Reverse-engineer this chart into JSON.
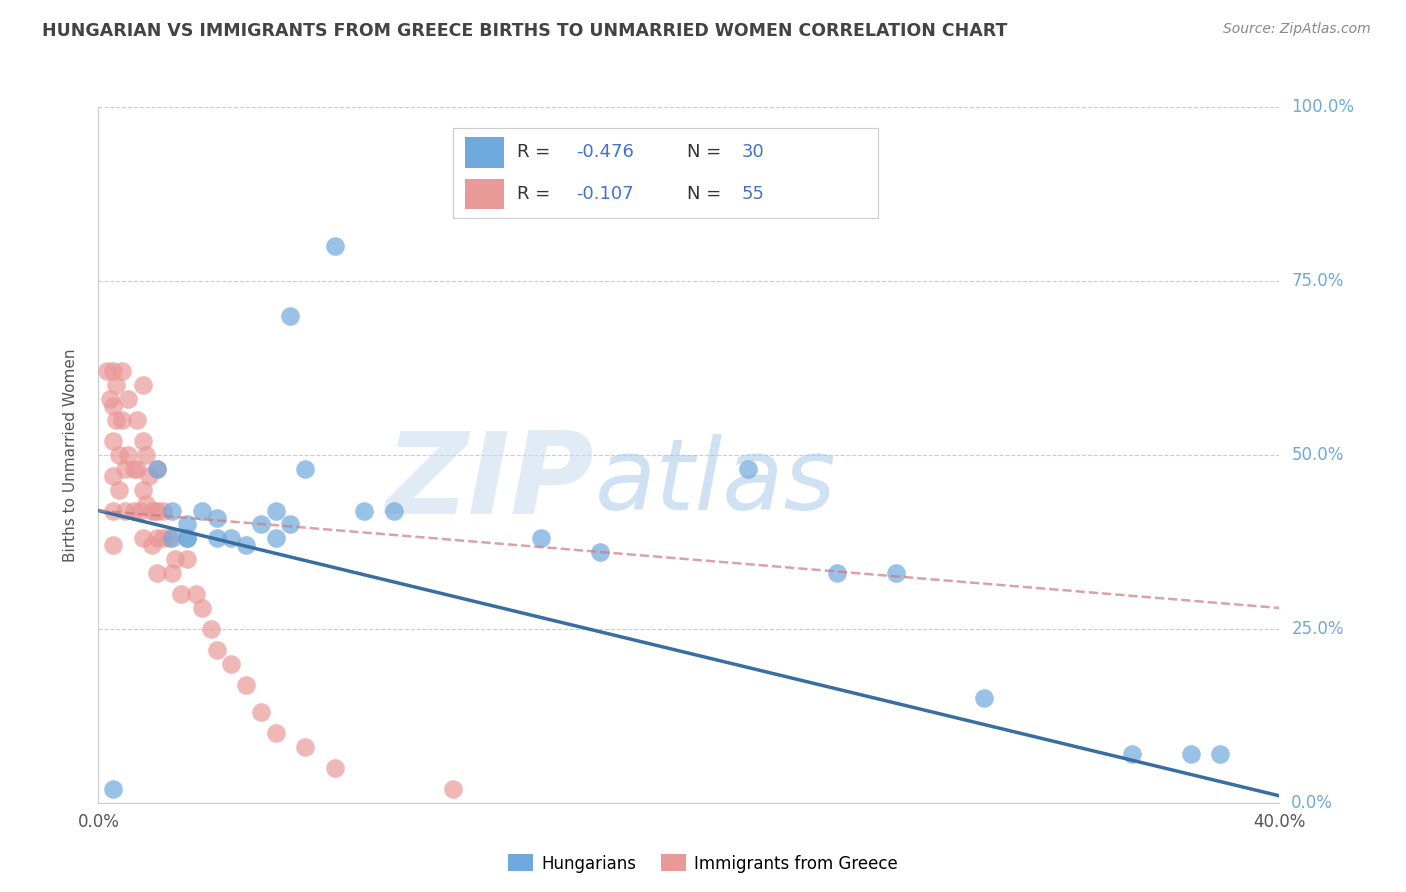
{
  "title": "HUNGARIAN VS IMMIGRANTS FROM GREECE BIRTHS TO UNMARRIED WOMEN CORRELATION CHART",
  "source": "Source: ZipAtlas.com",
  "ylabel": "Births to Unmarried Women",
  "xlim": [
    0.0,
    0.4
  ],
  "ylim": [
    0.0,
    1.0
  ],
  "xticks": [
    0.0,
    0.05,
    0.1,
    0.15,
    0.2,
    0.25,
    0.3,
    0.35,
    0.4
  ],
  "xticklabels": [
    "0.0%",
    "",
    "",
    "",
    "",
    "",
    "",
    "",
    "40.0%"
  ],
  "yticks": [
    0.0,
    0.25,
    0.5,
    0.75,
    1.0
  ],
  "yticklabels_right": [
    "0.0%",
    "25.0%",
    "50.0%",
    "75.0%",
    "100.0%"
  ],
  "hungarian_color": "#6fa8dc",
  "greece_color": "#ea9999",
  "hungarian_trend_color": "#3a6da0",
  "greece_trend_color": "#c97b84",
  "hungarian_R": "-0.476",
  "hungarian_N": "30",
  "greece_R": "-0.107",
  "greece_N": "55",
  "watermark_zip": "ZIP",
  "watermark_atlas": "atlas",
  "watermark_color_zip": "#c5daf5",
  "watermark_color_atlas": "#a8c8e8",
  "background_color": "#ffffff",
  "grid_color": "#cccccc",
  "title_color": "#434343",
  "right_tick_color": "#6fa8dc",
  "legend_R_color": "#4472c4",
  "legend_N_color": "#4472c4",
  "hung_x": [
    0.005,
    0.02,
    0.025,
    0.03,
    0.03,
    0.035,
    0.04,
    0.045,
    0.05,
    0.055,
    0.06,
    0.065,
    0.07,
    0.08,
    0.09,
    0.1,
    0.15,
    0.17,
    0.22,
    0.25,
    0.27,
    0.3,
    0.35,
    0.37,
    0.38,
    0.025,
    0.03,
    0.04,
    0.06,
    0.065
  ],
  "hung_y": [
    0.02,
    0.48,
    0.42,
    0.4,
    0.38,
    0.42,
    0.38,
    0.38,
    0.37,
    0.4,
    0.42,
    0.7,
    0.48,
    0.8,
    0.42,
    0.42,
    0.38,
    0.36,
    0.48,
    0.33,
    0.33,
    0.15,
    0.07,
    0.07,
    0.07,
    0.38,
    0.38,
    0.41,
    0.38,
    0.4
  ],
  "greece_x": [
    0.003,
    0.004,
    0.005,
    0.005,
    0.005,
    0.005,
    0.005,
    0.005,
    0.006,
    0.006,
    0.007,
    0.007,
    0.008,
    0.008,
    0.009,
    0.009,
    0.01,
    0.01,
    0.012,
    0.012,
    0.013,
    0.013,
    0.014,
    0.015,
    0.015,
    0.015,
    0.015,
    0.016,
    0.016,
    0.017,
    0.018,
    0.018,
    0.019,
    0.02,
    0.02,
    0.02,
    0.02,
    0.022,
    0.022,
    0.024,
    0.025,
    0.026,
    0.028,
    0.03,
    0.033,
    0.035,
    0.038,
    0.04,
    0.045,
    0.05,
    0.055,
    0.06,
    0.07,
    0.08,
    0.12
  ],
  "greece_y": [
    0.62,
    0.58,
    0.62,
    0.57,
    0.52,
    0.47,
    0.42,
    0.37,
    0.6,
    0.55,
    0.5,
    0.45,
    0.62,
    0.55,
    0.48,
    0.42,
    0.58,
    0.5,
    0.48,
    0.42,
    0.55,
    0.48,
    0.42,
    0.6,
    0.52,
    0.45,
    0.38,
    0.5,
    0.43,
    0.47,
    0.42,
    0.37,
    0.42,
    0.48,
    0.42,
    0.38,
    0.33,
    0.42,
    0.38,
    0.38,
    0.33,
    0.35,
    0.3,
    0.35,
    0.3,
    0.28,
    0.25,
    0.22,
    0.2,
    0.17,
    0.13,
    0.1,
    0.08,
    0.05,
    0.02
  ],
  "hung_trend_x": [
    0.0,
    0.4
  ],
  "hung_trend_y": [
    0.42,
    0.01
  ],
  "greece_trend_x": [
    0.0,
    0.4
  ],
  "greece_trend_y": [
    0.42,
    0.28
  ]
}
